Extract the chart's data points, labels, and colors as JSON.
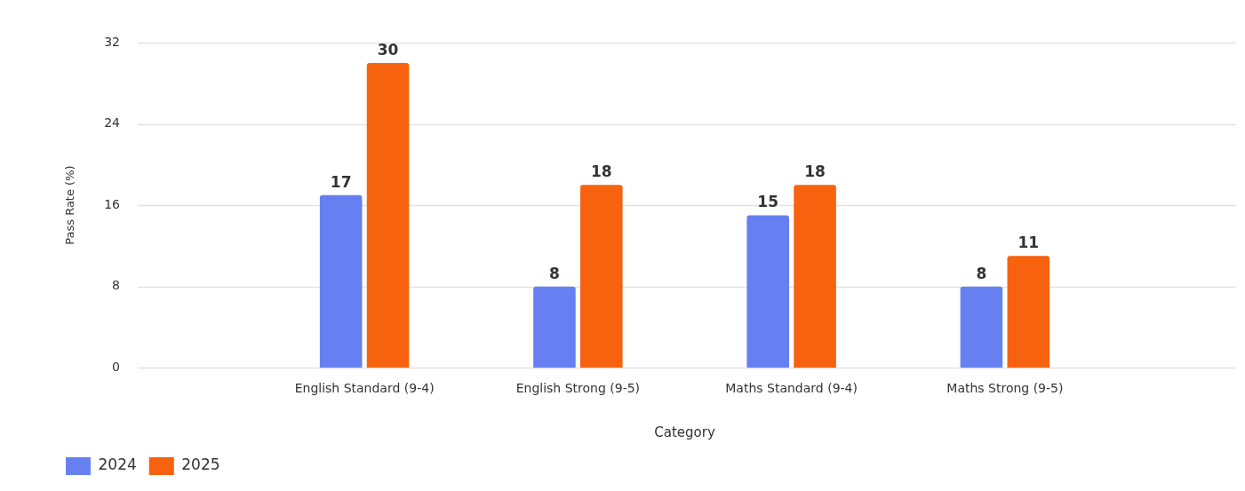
{
  "chart_data": {
    "type": "bar",
    "xlabel": "Category",
    "ylabel": "Pass Rate (%)",
    "categories": [
      "English Standard (9-4)",
      "English Strong (9-5)",
      "Maths Standard (9-4)",
      "Maths Strong (9-5)"
    ],
    "series": [
      {
        "name": "2024",
        "color": "#6680f2",
        "values": [
          17,
          8,
          15,
          8
        ]
      },
      {
        "name": "2025",
        "color": "#f7620f",
        "values": [
          30,
          18,
          18,
          11
        ]
      }
    ],
    "ylim": [
      0,
      32
    ],
    "yticks": [
      0,
      8,
      16,
      24,
      32
    ],
    "grid": "y",
    "legend": "bottom left",
    "data_labels": true
  }
}
